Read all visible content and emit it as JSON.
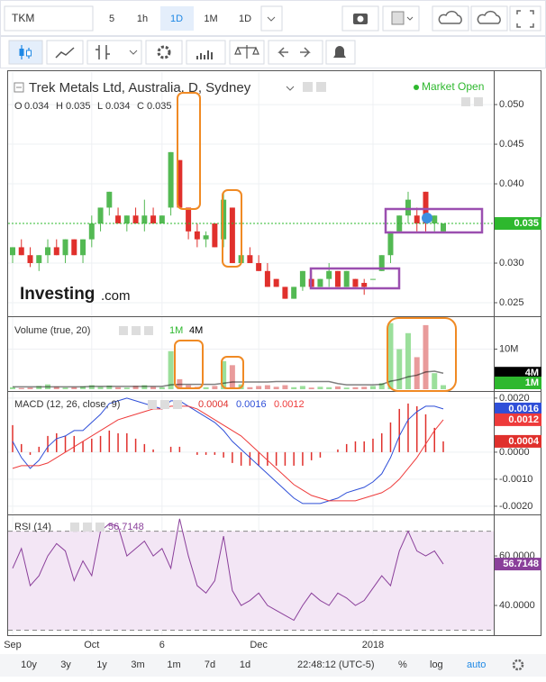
{
  "toolbar": {
    "symbol": "TKM",
    "intervals": [
      "5",
      "1h",
      "1D",
      "1M",
      "1D"
    ]
  },
  "chart_data": [
    {
      "type": "candlestick",
      "title": "Trek Metals Ltd, Australia, D, Sydney",
      "status": "Market Open",
      "watermark": [
        "Investing",
        ".com"
      ],
      "ohlc_labels": [
        "O",
        "H",
        "L",
        "C"
      ],
      "categories": [
        "Sep",
        null,
        null,
        null,
        null,
        null,
        null,
        null,
        null,
        "Oct",
        null,
        null,
        null,
        null,
        null,
        null,
        null,
        "6",
        null,
        null,
        null,
        null,
        null,
        null,
        null,
        null,
        null,
        null,
        "Dec",
        null,
        null,
        null,
        null,
        null,
        null,
        null,
        null,
        null,
        null,
        null,
        null,
        "2018",
        null,
        null,
        null,
        null,
        null,
        null,
        null,
        null
      ],
      "open": [
        0.031,
        0.032,
        0.031,
        0.03,
        0.031,
        0.032,
        0.031,
        0.033,
        0.031,
        0.033,
        0.035,
        0.037,
        0.036,
        0.035,
        0.036,
        0.035,
        0.036,
        0.035,
        0.037,
        0.043,
        0.037,
        0.034,
        0.033,
        0.035,
        0.033,
        0.037,
        0.03,
        0.031,
        0.03,
        0.029,
        0.028,
        0.027,
        0.0255,
        0.027,
        0.028,
        0.027,
        0.028,
        0.029,
        0.027,
        0.028,
        0.0275,
        0.028,
        0.029,
        0.031,
        0.034,
        0.036,
        0.036,
        0.039,
        0.035,
        0.034
      ],
      "high": [
        0.032,
        0.033,
        0.032,
        0.031,
        0.033,
        0.033,
        0.033,
        0.033,
        0.033,
        0.036,
        0.037,
        0.039,
        0.037,
        0.036,
        0.037,
        0.038,
        0.037,
        0.036,
        0.044,
        0.043,
        0.037,
        0.035,
        0.034,
        0.035,
        0.039,
        0.037,
        0.032,
        0.032,
        0.031,
        0.03,
        0.028,
        0.027,
        0.027,
        0.029,
        0.029,
        0.028,
        0.03,
        0.029,
        0.029,
        0.028,
        0.028,
        0.028,
        0.031,
        0.034,
        0.036,
        0.039,
        0.037,
        0.039,
        0.036,
        0.035
      ],
      "low": [
        0.03,
        0.031,
        0.0295,
        0.029,
        0.03,
        0.031,
        0.03,
        0.031,
        0.03,
        0.032,
        0.034,
        0.036,
        0.035,
        0.034,
        0.035,
        0.034,
        0.035,
        0.035,
        0.036,
        0.037,
        0.033,
        0.032,
        0.032,
        0.032,
        0.032,
        0.03,
        0.03,
        0.03,
        0.029,
        0.027,
        0.027,
        0.0255,
        0.0255,
        0.0265,
        0.027,
        0.027,
        0.027,
        0.027,
        0.027,
        0.027,
        0.026,
        0.028,
        0.029,
        0.03,
        0.034,
        0.035,
        0.034,
        0.034,
        0.034,
        0.034
      ],
      "close": [
        0.032,
        0.031,
        0.03,
        0.031,
        0.032,
        0.031,
        0.033,
        0.031,
        0.033,
        0.035,
        0.037,
        0.039,
        0.035,
        0.036,
        0.035,
        0.036,
        0.035,
        0.036,
        0.044,
        0.037,
        0.034,
        0.033,
        0.0335,
        0.032,
        0.038,
        0.03,
        0.031,
        0.03,
        0.029,
        0.027,
        0.027,
        0.0255,
        0.027,
        0.029,
        0.027,
        0.028,
        0.029,
        0.027,
        0.029,
        0.027,
        0.027,
        0.028,
        0.031,
        0.034,
        0.036,
        0.038,
        0.035,
        0.035,
        0.036,
        0.035
      ],
      "up_color": "#53b953",
      "down_color": "#e0302c",
      "price_line_color": "#2eb82e",
      "ylim": [
        0.02341,
        0.0541
      ],
      "yticks": [
        {
          "value": 0.05,
          "label": "0.050"
        },
        0.045,
        {
          "value": 0.04,
          "label": "0.040"
        },
        {
          "value": 0.03,
          "label": "0.030"
        },
        {
          "value": 0.025,
          "label": "0.025"
        }
      ],
      "grid": true
    },
    {
      "type": "bar",
      "title": "Volume (true, 20)",
      "up_color": "#9bdf9b",
      "down_color": "#e99b9b",
      "series": [
        {
          "type": "bar",
          "values": [
            500000,
            300000,
            400000,
            800000,
            1200000,
            600000,
            400000,
            500000,
            700000,
            1000000,
            600000,
            900000,
            500000,
            400000,
            800000,
            1000000,
            600000,
            500000,
            9500000,
            2500000,
            1000000,
            600000,
            500000,
            800000,
            7000000,
            6000000,
            1200000,
            500000,
            800000,
            1000000,
            600000,
            1000000,
            500000,
            800000,
            400000,
            600000,
            500000,
            700000,
            400000,
            500000,
            600000,
            800000,
            1500000,
            16500000,
            10000000,
            14000000,
            8000000,
            16000000,
            4000000,
            1000000
          ],
          "value_labels": [
            null,
            null,
            null,
            null,
            null,
            null,
            null,
            null,
            null,
            null,
            null,
            null,
            null,
            null,
            null,
            null,
            null,
            null,
            null,
            null,
            null,
            null,
            null,
            null,
            null,
            null,
            null,
            null,
            null,
            null,
            null,
            null,
            null,
            null,
            null,
            null,
            null,
            null,
            null,
            null,
            null,
            null,
            null,
            null,
            null,
            null,
            null,
            null,
            null,
            "1M"
          ]
        },
        {
          "type": "line",
          "color": "#000000",
          "values": [
            600000,
            600000,
            600000,
            600000,
            600000,
            600000,
            600000,
            600000,
            600000,
            700000,
            700000,
            700000,
            700000,
            700000,
            700000,
            700000,
            700000,
            700000,
            1100000,
            1200000,
            1200000,
            1200000,
            1200000,
            1200000,
            1500000,
            1800000,
            1800000,
            1800000,
            1800000,
            1800000,
            1900000,
            1900000,
            1900000,
            1900000,
            1900000,
            1900000,
            1900000,
            1400000,
            1100000,
            1100000,
            1100000,
            1100000,
            1200000,
            2000000,
            2400000,
            3100000,
            3500000,
            4300000,
            4500000,
            4000000
          ],
          "value_labels": [
            null,
            null,
            null,
            null,
            null,
            null,
            null,
            null,
            null,
            null,
            null,
            null,
            null,
            null,
            null,
            null,
            null,
            null,
            null,
            null,
            null,
            null,
            null,
            null,
            null,
            null,
            null,
            null,
            null,
            null,
            null,
            null,
            null,
            null,
            null,
            null,
            null,
            null,
            null,
            null,
            null,
            null,
            null,
            null,
            null,
            null,
            null,
            null,
            null,
            "4M"
          ]
        }
      ],
      "ylim": [
        0,
        18000000
      ],
      "yticks": [
        {
          "value": 10000000,
          "label": "10M"
        }
      ],
      "grid": true
    },
    {
      "type": "line",
      "title": "MACD (12, 26, close, 9)",
      "series": [
        {
          "type": "bar",
          "color": "#e0302c",
          "values": [
            0.001,
            0.0003,
            -0.0001,
            0.0002,
            0.0006,
            0.0007,
            0.0006,
            0.0006,
            0.0004,
            0.0005,
            0.0006,
            0.0008,
            0.0007,
            0.0007,
            0.0005,
            0.0003,
            0.0001,
            0,
            0.0002,
            0.0002,
            0,
            -0.0001,
            -0.0001,
            -0.0001,
            -0.0002,
            -0.0004,
            -0.0005,
            -0.0005,
            -0.0005,
            -0.0005,
            -0.0005,
            -0.0005,
            -0.0005,
            -0.0005,
            -0.0003,
            -0.0002,
            0,
            0.0001,
            0.0003,
            0.0004,
            0.0004,
            0.0005,
            0.0007,
            0.0011,
            0.0016,
            0.0018,
            0.0017,
            0.0014,
            0.0009,
            0.0004
          ]
        },
        {
          "type": "line",
          "color": "#2f4fd8",
          "values": [
            0.0004,
            -0.0002,
            -0.0006,
            -0.0003,
            0.0002,
            0.0005,
            0.0006,
            0.0008,
            0.0008,
            0.0011,
            0.0014,
            0.0018,
            0.0019,
            0.002,
            0.0019,
            0.0018,
            0.0017,
            0.0016,
            0.0019,
            0.0019,
            0.0017,
            0.0015,
            0.0013,
            0.0011,
            0.0008,
            0.0004,
            0.0001,
            -0.0002,
            -0.0005,
            -0.0008,
            -0.0011,
            -0.0014,
            -0.0017,
            -0.0019,
            -0.0019,
            -0.0019,
            -0.0018,
            -0.0017,
            -0.0015,
            -0.0014,
            -0.0013,
            -0.0011,
            -0.0008,
            -0.0002,
            0.0006,
            0.0012,
            0.0015,
            0.0017,
            0.0017,
            0.0016
          ]
        },
        {
          "type": "line",
          "color": "#ee3b3b",
          "values": [
            -0.0006,
            -0.0005,
            -0.0005,
            -0.0005,
            -0.0004,
            -0.0002,
            0,
            0.0002,
            0.0004,
            0.0006,
            0.0008,
            0.001,
            0.0012,
            0.0013,
            0.0014,
            0.0015,
            0.0016,
            0.0016,
            0.0017,
            0.0017,
            0.0017,
            0.0016,
            0.0014,
            0.0012,
            0.001,
            0.0008,
            0.0006,
            0.0003,
            0,
            -0.0003,
            -0.0006,
            -0.0009,
            -0.0012,
            -0.0014,
            -0.0016,
            -0.0017,
            -0.0018,
            -0.0018,
            -0.0018,
            -0.0018,
            -0.0017,
            -0.0016,
            -0.0015,
            -0.0013,
            -0.001,
            -0.0006,
            -0.0002,
            0.0003,
            0.0008,
            0.0012
          ]
        }
      ],
      "ylim": [
        -0.00227,
        0.00223
      ],
      "yticks": [
        {
          "value": 0.002,
          "label": "0.0020"
        },
        {
          "value": 0,
          "label": "0.0000"
        },
        {
          "value": -0.001,
          "label": "-0.0010"
        },
        {
          "value": -0.002,
          "label": "-0.0020"
        }
      ],
      "grid": true
    },
    {
      "type": "line",
      "title": "RSI (14)",
      "bands": [
        30,
        70
      ],
      "band_color": "#f3e6f5",
      "series": [
        {
          "type": "line",
          "color": "#8a3f9a",
          "values": [
            55,
            63,
            48,
            52,
            60,
            65,
            62,
            50,
            58,
            52,
            70,
            73,
            72,
            60,
            63,
            66,
            60,
            63,
            55,
            75,
            60,
            48,
            45,
            50,
            68,
            46,
            40,
            42,
            45,
            40,
            38,
            36,
            34,
            40,
            45,
            42,
            40,
            45,
            43,
            40,
            42,
            47,
            52,
            48,
            62,
            70,
            62,
            60,
            62,
            56.7148
          ]
        }
      ],
      "ylim": [
        28,
        76.4
      ],
      "yticks": [
        {
          "value": 60,
          "label": "60.0000"
        },
        {
          "value": 40,
          "label": "40.0000"
        }
      ],
      "grid": true
    }
  ],
  "footer": {
    "ranges": [
      "10y",
      "3y",
      "1y",
      "3m",
      "1m",
      "7d",
      "1d"
    ],
    "time": "22:48:12 (UTC-5)",
    "options": [
      "%",
      "log",
      "auto"
    ]
  }
}
